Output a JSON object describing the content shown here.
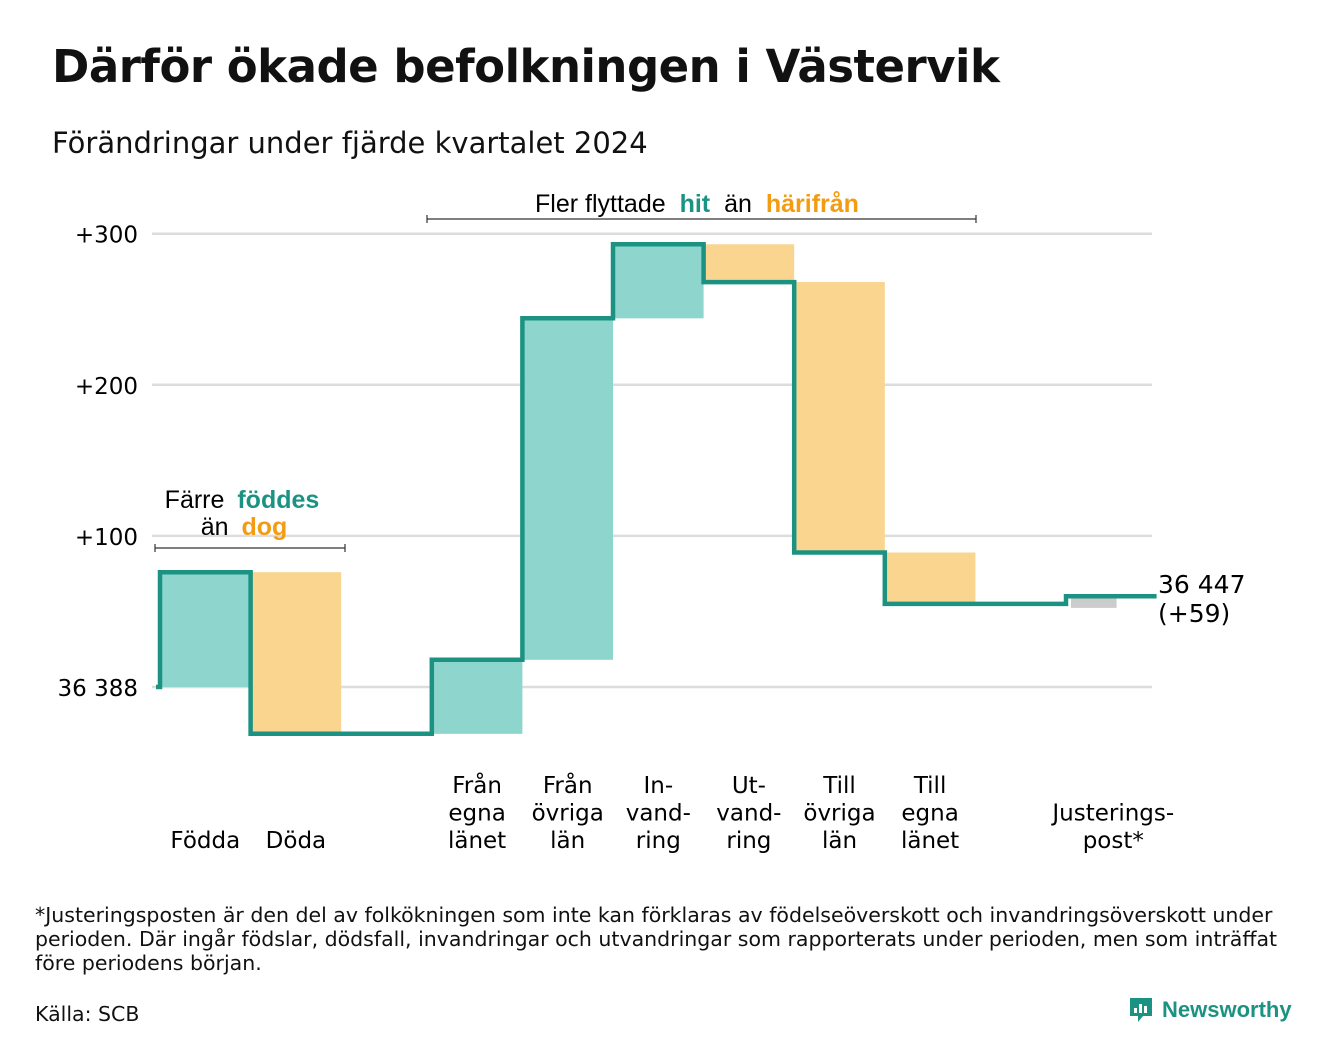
{
  "title": "Därför ökade befolkningen i Västervik",
  "subtitle": "Förändringar under fjärde kvartalet 2024",
  "footnote": "*Justeringsposten är den del av folkökningen som inte kan förklaras av födelseöverskott och invandringsöverskott under perioden. Där ingår födslar, dödsfall, invandringar och utvandringar som rapporterats under perioden, men som inträffat före periodens början.",
  "source": "Källa: SCB",
  "brand": "Newsworthy",
  "annotations": {
    "births": {
      "line1": "Färre",
      "hl1": "föddes",
      "line2": "än",
      "hl2": "dog"
    },
    "migration": {
      "text1": "Fler flyttade",
      "hl1": "hit",
      "text2": "än",
      "hl2": "härifrån"
    },
    "end_value": "36 447",
    "end_change": "(+59)"
  },
  "colors": {
    "line": "#1c9382",
    "positive": "#8dd5cd",
    "negative": "#f9d58f",
    "adjust": "#cccccc",
    "accent_text": "#1c9382",
    "orange_text": "#f39c12"
  },
  "chart_data": {
    "type": "waterfall",
    "baseline": 36388,
    "baseline_label": "36 388",
    "yticks": [
      {
        "value": 0,
        "label": "36 388"
      },
      {
        "value": 100,
        "label": "+100"
      },
      {
        "value": 200,
        "label": "+200"
      },
      {
        "value": 300,
        "label": "+300"
      }
    ],
    "ylim": [
      -40,
      310
    ],
    "steps": [
      {
        "label": [
          "Födda"
        ],
        "change": 76,
        "kind": "positive"
      },
      {
        "label": [
          "Döda"
        ],
        "change": -107,
        "kind": "negative"
      },
      {
        "label": [
          ""
        ],
        "change": 0,
        "kind": "none"
      },
      {
        "label": [
          "Från",
          "egna",
          "länet"
        ],
        "change": 49,
        "kind": "positive"
      },
      {
        "label": [
          "Från",
          "övriga",
          "län"
        ],
        "change": 226,
        "kind": "positive"
      },
      {
        "label": [
          "In-",
          "vand-",
          "ring"
        ],
        "change": 49,
        "kind": "positive"
      },
      {
        "label": [
          "Ut-",
          "vand-",
          "ring"
        ],
        "change": -25,
        "kind": "negative"
      },
      {
        "label": [
          "Till",
          "övriga",
          "län"
        ],
        "change": -179,
        "kind": "negative"
      },
      {
        "label": [
          "Till",
          "egna",
          "länet"
        ],
        "change": -34,
        "kind": "negative"
      },
      {
        "label": [
          ""
        ],
        "change": 0,
        "kind": "none"
      },
      {
        "label": [
          "Justerings-",
          "post*"
        ],
        "change": 5,
        "kind": "adjust"
      }
    ],
    "final_value": 36447,
    "total_change": 59
  }
}
